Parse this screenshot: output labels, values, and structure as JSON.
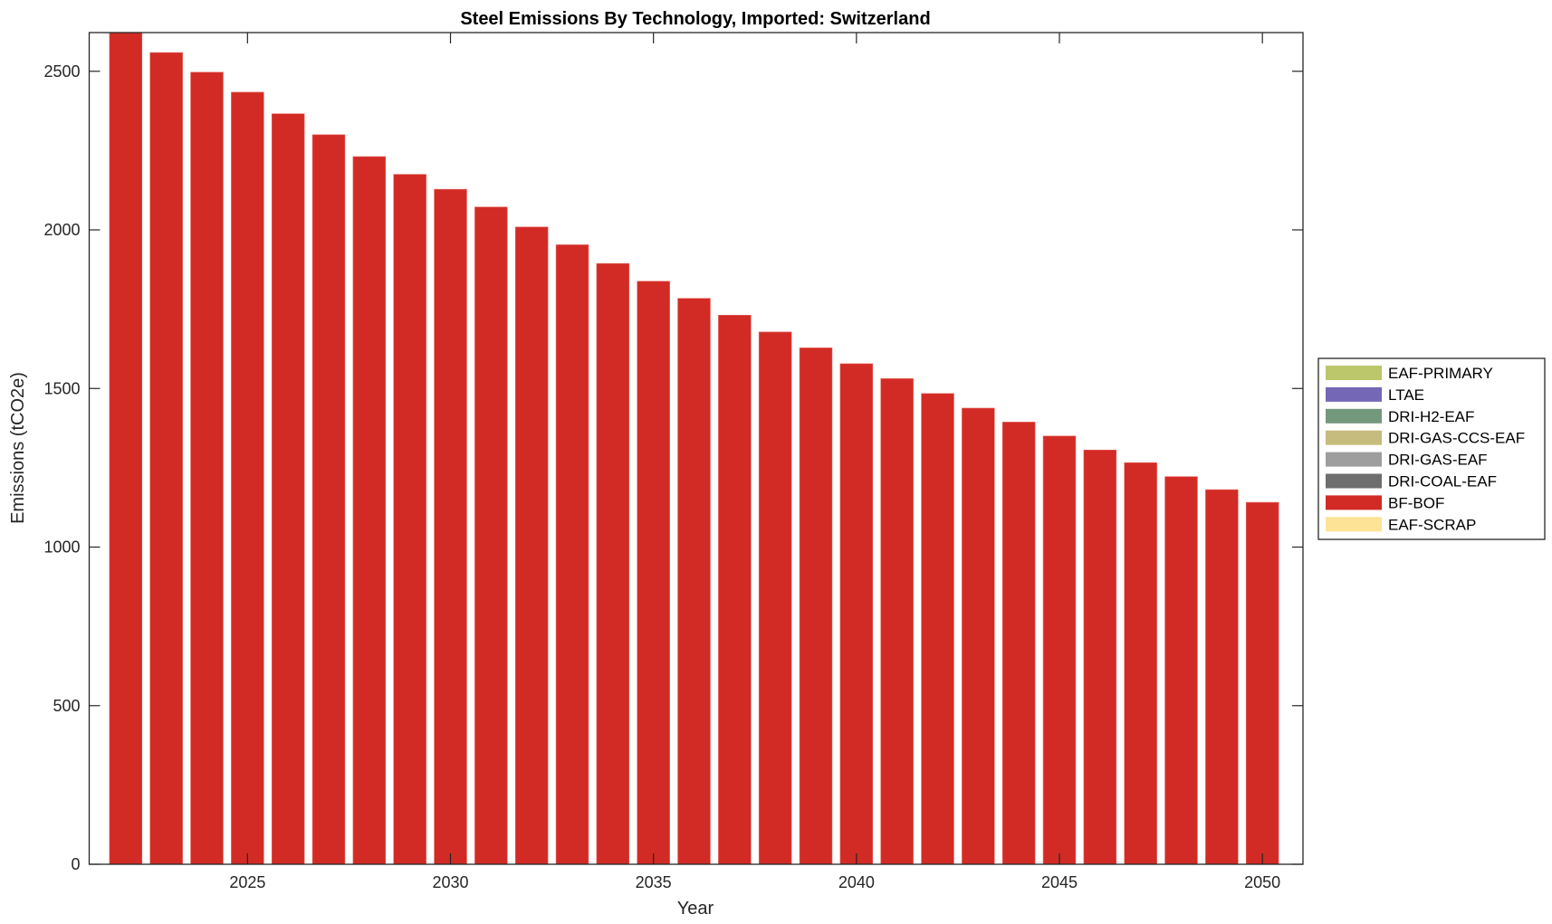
{
  "chart_data": {
    "type": "bar",
    "stacked": true,
    "title": "Steel Emissions By Technology, Imported: Switzerland",
    "xlabel": "Year",
    "ylabel": "Emissions (tCO2e)",
    "xlim": [
      2021.1,
      2051
    ],
    "ylim": [
      0,
      2622
    ],
    "xticks": [
      2025,
      2030,
      2035,
      2040,
      2045,
      2050
    ],
    "yticks": [
      0,
      500,
      1000,
      1500,
      2000,
      2500
    ],
    "grid": false,
    "legend_position": "outside-right",
    "x": [
      2022,
      2023,
      2024,
      2025,
      2026,
      2027,
      2028,
      2029,
      2030,
      2031,
      2032,
      2033,
      2034,
      2035,
      2036,
      2037,
      2038,
      2039,
      2040,
      2041,
      2042,
      2043,
      2044,
      2045,
      2046,
      2047,
      2048,
      2049,
      2050
    ],
    "series": [
      {
        "name": "EAF-PRIMARY",
        "color": "#bcc66b",
        "values": [
          0,
          0,
          0,
          0,
          0,
          0,
          0,
          0,
          0,
          0,
          0,
          0,
          0,
          0,
          0,
          0,
          0,
          0,
          0,
          0,
          0,
          0,
          0,
          0,
          0,
          0,
          0,
          0,
          0
        ]
      },
      {
        "name": "LTAE",
        "color": "#7468b6",
        "values": [
          0,
          0,
          0,
          0,
          0,
          0,
          0,
          0,
          0,
          0,
          0,
          0,
          0,
          0,
          0,
          0,
          0,
          0,
          0,
          0,
          0,
          0,
          0,
          0,
          0,
          0,
          0,
          0,
          0
        ]
      },
      {
        "name": "DRI-H2-EAF",
        "color": "#73987c",
        "values": [
          0,
          0,
          0,
          0,
          0,
          0,
          0,
          0,
          0,
          0,
          0,
          0,
          0,
          0,
          0,
          0,
          0,
          0,
          0,
          0,
          0,
          0,
          0,
          0,
          0,
          0,
          0,
          0,
          0
        ]
      },
      {
        "name": "DRI-GAS-CCS-EAF",
        "color": "#c6bc7e",
        "values": [
          0,
          0,
          0,
          0,
          0,
          0,
          0,
          0,
          0,
          0,
          0,
          0,
          0,
          0,
          0,
          0,
          0,
          0,
          0,
          0,
          0,
          0,
          0,
          0,
          0,
          0,
          0,
          0,
          0
        ]
      },
      {
        "name": "DRI-GAS-EAF",
        "color": "#9e9e9e",
        "values": [
          0,
          0,
          0,
          0,
          0,
          0,
          0,
          0,
          0,
          0,
          0,
          0,
          0,
          0,
          0,
          0,
          0,
          0,
          0,
          0,
          0,
          0,
          0,
          0,
          0,
          0,
          0,
          0,
          0
        ]
      },
      {
        "name": "DRI-COAL-EAF",
        "color": "#6e6e6e",
        "values": [
          0,
          0,
          0,
          0,
          0,
          0,
          0,
          0,
          0,
          0,
          0,
          0,
          0,
          0,
          0,
          0,
          0,
          0,
          0,
          0,
          0,
          0,
          0,
          0,
          0,
          0,
          0,
          0,
          0
        ]
      },
      {
        "name": "BF-BOF",
        "color": "#d22b25",
        "values": [
          2622,
          2559,
          2497,
          2434,
          2366,
          2300,
          2231,
          2175,
          2128,
          2072,
          2009,
          1953,
          1894,
          1838,
          1784,
          1731,
          1678,
          1628,
          1578,
          1531,
          1484,
          1438,
          1394,
          1350,
          1306,
          1266,
          1222,
          1181,
          1141
        ]
      },
      {
        "name": "EAF-SCRAP",
        "color": "#fde395",
        "values": [
          0,
          0,
          0,
          0,
          0,
          0,
          0,
          0,
          0,
          0,
          0,
          0,
          0,
          0,
          0,
          0,
          0,
          0,
          0,
          0,
          0,
          0,
          0,
          0,
          0,
          0,
          0,
          0,
          0
        ]
      }
    ]
  }
}
